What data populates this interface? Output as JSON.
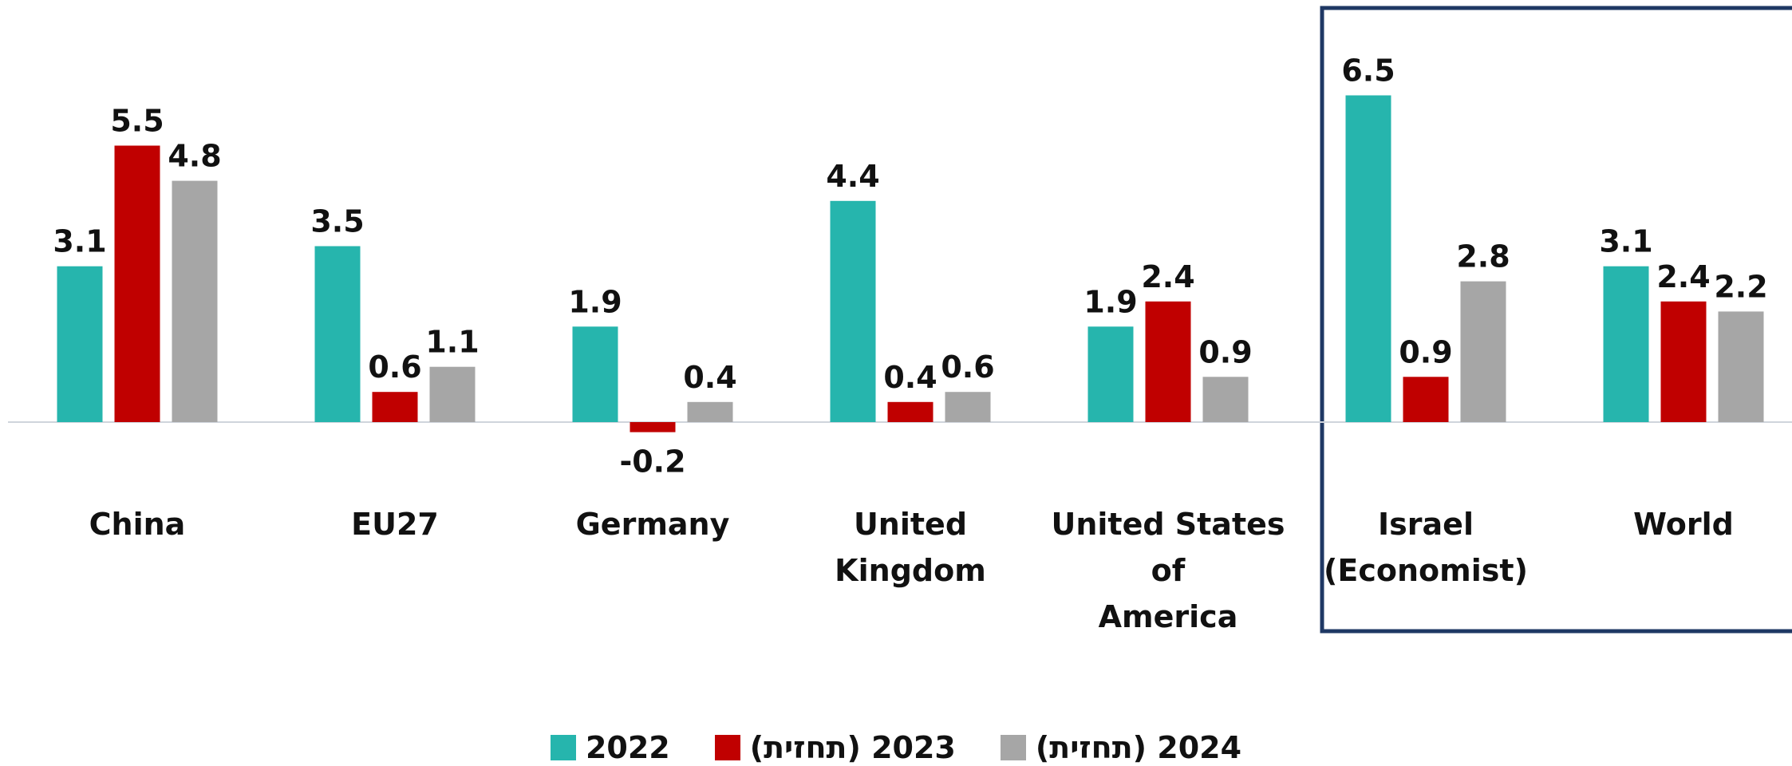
{
  "chart_data": {
    "type": "bar",
    "categories": [
      "China",
      "EU27",
      "Germany",
      "United\nKingdom",
      "United States of\nAmerica",
      "Israel\n(Economist)",
      "World"
    ],
    "series": [
      {
        "name": "2022",
        "color": "#26b5ad",
        "values": [
          3.1,
          3.5,
          1.9,
          4.4,
          1.9,
          6.5,
          3.1
        ]
      },
      {
        "name": "2023 (תחזית)",
        "color": "#c00000",
        "values": [
          5.5,
          0.6,
          -0.2,
          0.4,
          2.4,
          0.9,
          2.4
        ]
      },
      {
        "name": "2024 (תחזית)",
        "color": "#a6a6a6",
        "values": [
          4.8,
          1.1,
          0.4,
          0.6,
          0.9,
          2.8,
          2.2
        ]
      }
    ],
    "ylim": [
      -2,
      8
    ],
    "grid": false,
    "legend": "bottom"
  }
}
